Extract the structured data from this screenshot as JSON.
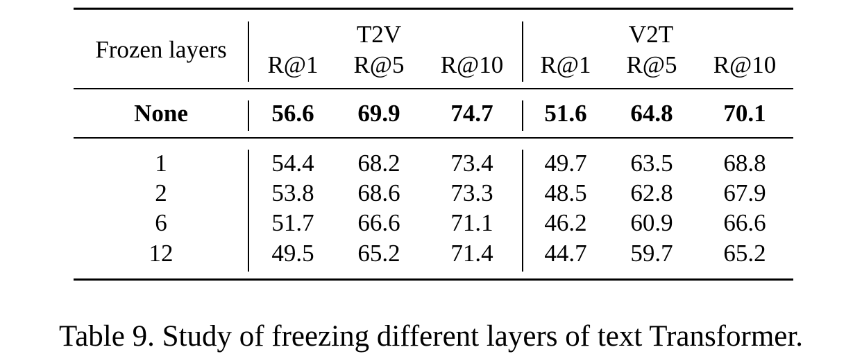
{
  "table": {
    "row_header": "Frozen layers",
    "groups": [
      {
        "label": "T2V",
        "metrics": [
          "R@1",
          "R@5",
          "R@10"
        ]
      },
      {
        "label": "V2T",
        "metrics": [
          "R@1",
          "R@5",
          "R@10"
        ]
      }
    ],
    "baseline": {
      "label": "None",
      "values": [
        "56.6",
        "69.9",
        "74.7",
        "51.6",
        "64.8",
        "70.1"
      ]
    },
    "rows": [
      {
        "label": "1",
        "values": [
          "54.4",
          "68.2",
          "73.4",
          "49.7",
          "63.5",
          "68.8"
        ]
      },
      {
        "label": "2",
        "values": [
          "53.8",
          "68.6",
          "73.3",
          "48.5",
          "62.8",
          "67.9"
        ]
      },
      {
        "label": "6",
        "values": [
          "51.7",
          "66.6",
          "71.1",
          "46.2",
          "60.9",
          "66.6"
        ]
      },
      {
        "label": "12",
        "values": [
          "49.5",
          "65.2",
          "71.4",
          "44.7",
          "59.7",
          "65.2"
        ]
      }
    ]
  },
  "caption": "Table 9. Study of freezing different layers of text Transformer."
}
